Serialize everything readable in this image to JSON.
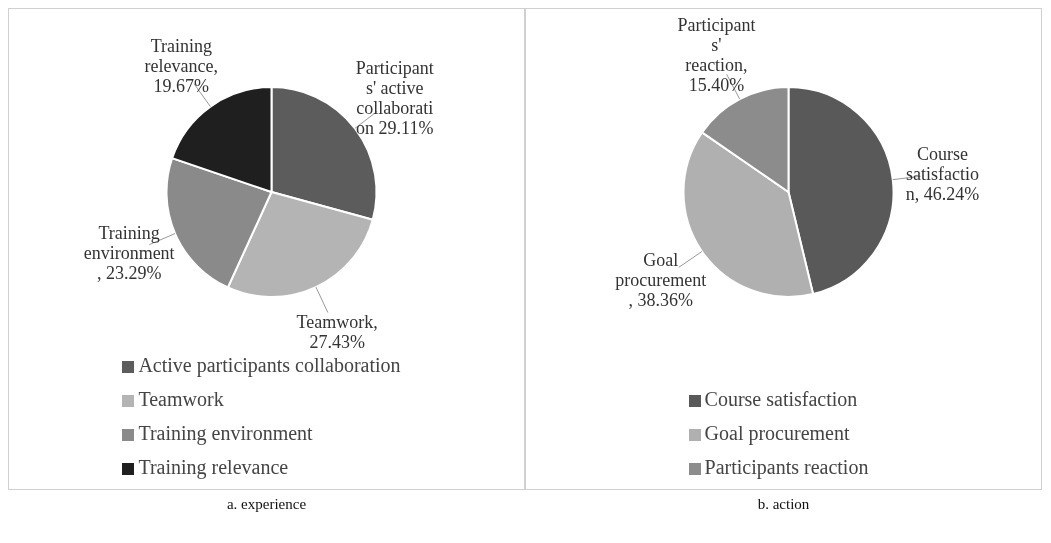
{
  "chart_data": [
    {
      "type": "pie",
      "title": "a. experience",
      "categories": [
        "Active participants collaboration",
        "Teamwork",
        "Training environment",
        "Training relevance"
      ],
      "values": [
        29.11,
        27.43,
        23.29,
        19.67
      ],
      "colors": [
        "#5c5c5c",
        "#b4b4b4",
        "#8a8a8a",
        "#1f1f1f"
      ],
      "value_labels": [
        "Participants' active collaboration 29.11%",
        "Teamwork, 27.43%",
        "Training environment, 23.29%",
        "Training relevance, 19.67%"
      ],
      "legend": "bottom"
    },
    {
      "type": "pie",
      "title": "b. action",
      "categories": [
        "Course satisfaction",
        "Goal procurement",
        "Participants reaction"
      ],
      "values": [
        46.24,
        38.36,
        15.4
      ],
      "colors": [
        "#595959",
        "#b0b0b0",
        "#8c8c8c"
      ],
      "value_labels": [
        "Course satisfaction, 46.24%",
        "Goal procurement, 38.36%",
        "Participants' reaction, 15.40%"
      ],
      "legend": "bottom"
    }
  ]
}
